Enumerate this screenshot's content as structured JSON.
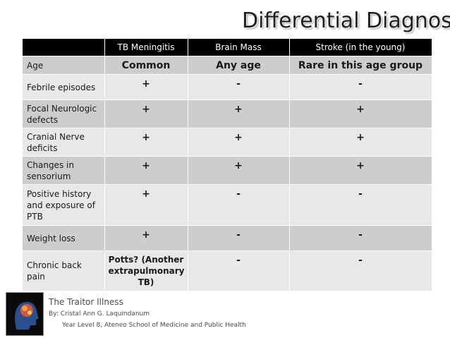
{
  "slide": {
    "title": "Differential Diagnosis"
  },
  "table": {
    "headers": [
      "",
      "TB Meningitis",
      "Brain Mass",
      "Stroke (in the young)"
    ],
    "rows": [
      {
        "label": "Age",
        "tb": "Common",
        "mass": "Any age",
        "stroke": "Rare in this age group"
      },
      {
        "label": "Febrile episodes",
        "tb": "+",
        "mass": "-",
        "stroke": "-"
      },
      {
        "label": "Focal Neurologic defects",
        "tb": "+",
        "mass": "+",
        "stroke": "+"
      },
      {
        "label": "Cranial Nerve deficits",
        "tb": "+",
        "mass": "+",
        "stroke": "+"
      },
      {
        "label": "Changes in sensorium",
        "tb": "+",
        "mass": "+",
        "stroke": "+"
      },
      {
        "label": "Positive history and exposure of PTB",
        "tb": "+",
        "mass": "-",
        "stroke": "-"
      },
      {
        "label": "Weight loss",
        "tb": "+",
        "mass": "-",
        "stroke": "-"
      },
      {
        "label": "Chronic back pain",
        "tb": "Potts? (Another extrapulmonary TB)",
        "mass": "-",
        "stroke": "-"
      }
    ]
  },
  "footer": {
    "title": "The Traitor Illness",
    "author": "By: Cristal Ann G. Laquindanum",
    "affiliation": "Year Level 8, Ateneo School of Medicine and Public Health",
    "logo_icon": "brain-head-icon"
  }
}
